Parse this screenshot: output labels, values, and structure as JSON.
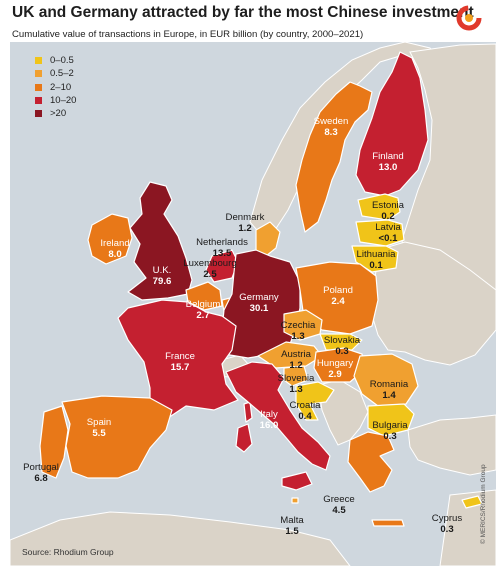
{
  "title": "UK and Germany attracted by far the most Chinese investment",
  "subtitle": "Cumulative value of transactions in Europe, in EUR billion (by country, 2000–2021)",
  "legend": [
    {
      "label": "0–0.5",
      "color": "#f0c419"
    },
    {
      "label": "0.5–2",
      "color": "#f0a030"
    },
    {
      "label": "2–10",
      "color": "#e87818"
    },
    {
      "label": "10–20",
      "color": "#c42030"
    },
    {
      "label": ">20",
      "color": "#8b1622"
    }
  ],
  "countries": [
    {
      "name": "Finland",
      "value": "13.0"
    },
    {
      "name": "Sweden",
      "value": "8.3"
    },
    {
      "name": "Estonia",
      "value": "0.2"
    },
    {
      "name": "Latvia",
      "value": "<0.1"
    },
    {
      "name": "Lithuania",
      "value": "0.1"
    },
    {
      "name": "Denmark",
      "value": "1.2"
    },
    {
      "name": "Ireland",
      "value": "8.0"
    },
    {
      "name": "U.K.",
      "value": "79.6"
    },
    {
      "name": "Netherlands",
      "value": "13.5"
    },
    {
      "name": "Luxembourg",
      "value": "2.5"
    },
    {
      "name": "Belgium",
      "value": "2.7"
    },
    {
      "name": "Germany",
      "value": "30.1"
    },
    {
      "name": "Poland",
      "value": "2.4"
    },
    {
      "name": "Czechia",
      "value": "1.3"
    },
    {
      "name": "Slovakia",
      "value": "0.3"
    },
    {
      "name": "Austria",
      "value": "1.2"
    },
    {
      "name": "Hungary",
      "value": "2.9"
    },
    {
      "name": "Slovenia",
      "value": "1.3"
    },
    {
      "name": "Croatia",
      "value": "0.4"
    },
    {
      "name": "France",
      "value": "15.7"
    },
    {
      "name": "Romania",
      "value": "1.4"
    },
    {
      "name": "Bulgaria",
      "value": "0.3"
    },
    {
      "name": "Italy",
      "value": "16.0"
    },
    {
      "name": "Spain",
      "value": "5.5"
    },
    {
      "name": "Portugal",
      "value": "6.8"
    },
    {
      "name": "Greece",
      "value": "4.5"
    },
    {
      "name": "Malta",
      "value": "1.5"
    },
    {
      "name": "Cyprus",
      "value": "0.3"
    }
  ],
  "source": "Source: Rhodium Group",
  "credit": "© MERICS/Rhodium Group"
}
